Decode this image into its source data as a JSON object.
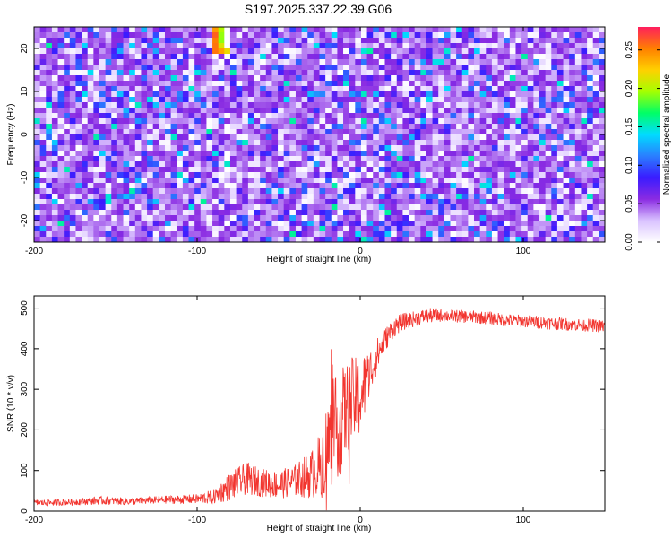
{
  "title": "S197.2025.337.22.39.G06",
  "colors": {
    "snr_line": "#f2352f",
    "axis": "#000000",
    "background": "#ffffff",
    "colormap": [
      "#ffffff",
      "#d9c2ff",
      "#8a2be2",
      "#3a1cff",
      "#2a7fff",
      "#00dcff",
      "#00ff66",
      "#a6ff00",
      "#ffd000",
      "#ff7f00",
      "#ff1d5e"
    ]
  },
  "chart_data": [
    {
      "type": "heatmap",
      "name": "spectrogram",
      "xlabel": "Height of straight line (km)",
      "ylabel": "Frequency (Hz)",
      "xlim": [
        -200,
        150
      ],
      "ylim": [
        -25,
        25
      ],
      "xticks": [
        -200,
        -100,
        0,
        100
      ],
      "yticks": [
        -20,
        -10,
        0,
        10,
        20
      ],
      "xtick_labels": [
        "-200",
        "-100",
        "0",
        "100"
      ],
      "ytick_labels": [
        "-20",
        "-10",
        "0",
        "10",
        "20"
      ],
      "colorbar": {
        "label": "Normalized spectral amplitude",
        "range": [
          0,
          0.28
        ],
        "ticks": [
          0.0,
          0.05,
          0.1,
          0.15,
          0.2,
          0.25
        ],
        "tick_labels": [
          "0.00",
          "0.05",
          "0.10",
          "0.15",
          "0.20",
          "0.25"
        ]
      },
      "typical_amplitude": 0.03,
      "peak_amplitude": 0.28,
      "peak_location_km": -85,
      "peak_location_hz": 22
    },
    {
      "type": "line",
      "name": "snr",
      "xlabel": "Height of straight line (km)",
      "ylabel": "SNR (10 * v/v)",
      "xlim": [
        -200,
        150
      ],
      "ylim": [
        0,
        530
      ],
      "xticks": [
        -200,
        -100,
        0,
        100
      ],
      "yticks": [
        0,
        100,
        200,
        300,
        400,
        500
      ],
      "xtick_labels": [
        "-200",
        "-100",
        "0",
        "100"
      ],
      "ytick_labels": [
        "0",
        "100",
        "200",
        "300",
        "400",
        "500"
      ],
      "series": [
        {
          "name": "SNR",
          "x": [
            -200,
            -180,
            -160,
            -140,
            -120,
            -100,
            -90,
            -80,
            -70,
            -60,
            -50,
            -40,
            -30,
            -25,
            -20,
            -15,
            -10,
            -5,
            0,
            5,
            10,
            15,
            20,
            25,
            30,
            40,
            50,
            60,
            70,
            80,
            90,
            100,
            110,
            120,
            130,
            140,
            150
          ],
          "y": [
            20,
            22,
            26,
            24,
            28,
            30,
            35,
            60,
            80,
            70,
            65,
            75,
            90,
            110,
            160,
            200,
            240,
            270,
            280,
            330,
            380,
            420,
            450,
            465,
            470,
            480,
            482,
            480,
            478,
            475,
            470,
            468,
            465,
            462,
            460,
            458,
            455
          ],
          "noise": [
            8,
            8,
            10,
            9,
            10,
            12,
            18,
            35,
            40,
            35,
            35,
            40,
            60,
            80,
            120,
            130,
            120,
            110,
            100,
            70,
            45,
            30,
            25,
            22,
            20,
            18,
            16,
            16,
            16,
            16,
            16,
            16,
            16,
            16,
            16,
            16,
            16
          ]
        }
      ]
    }
  ]
}
